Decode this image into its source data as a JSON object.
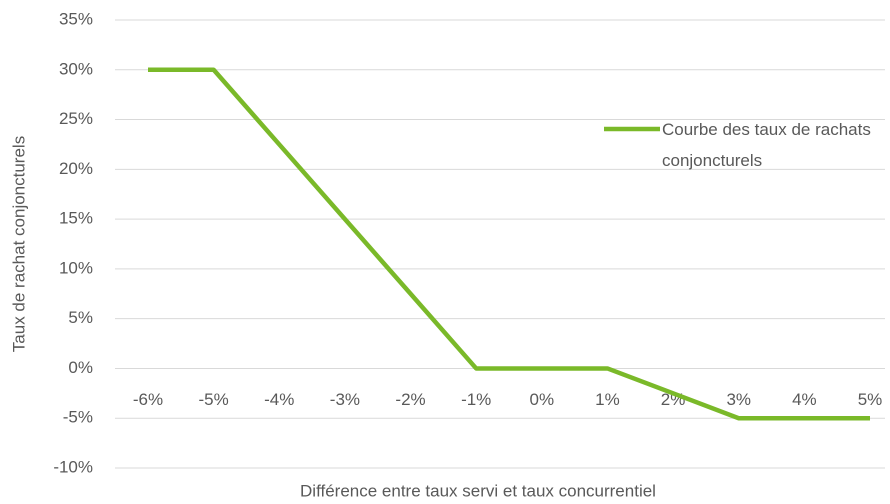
{
  "chart_data": {
    "type": "line",
    "x_label": "Différence entre taux servi et taux concurrentiel",
    "y_label": "Taux de rachat conjoncturels",
    "categories": [
      "-6%",
      "-5%",
      "-4%",
      "-3%",
      "-2%",
      "-1%",
      "0%",
      "1%",
      "2%",
      "3%",
      "4%",
      "5%"
    ],
    "series": [
      {
        "name": "Courbe des taux de rachats conjoncturels",
        "color": "#7ab929",
        "values": [
          30,
          30,
          22.5,
          15,
          7.5,
          0,
          0,
          0,
          -2.5,
          -5,
          -5,
          -5
        ]
      }
    ],
    "ylim": [
      -10,
      35
    ],
    "yticks": [
      {
        "value": -10,
        "label": "-10%"
      },
      {
        "value": -5,
        "label": "-5%"
      },
      {
        "value": 0,
        "label": "0%"
      },
      {
        "value": 5,
        "label": "5%"
      },
      {
        "value": 10,
        "label": "10%"
      },
      {
        "value": 15,
        "label": "15%"
      },
      {
        "value": 20,
        "label": "20%"
      },
      {
        "value": 25,
        "label": "25%"
      },
      {
        "value": 30,
        "label": "30%"
      },
      {
        "value": 35,
        "label": "35%"
      }
    ],
    "grid": true,
    "legend": "right"
  }
}
